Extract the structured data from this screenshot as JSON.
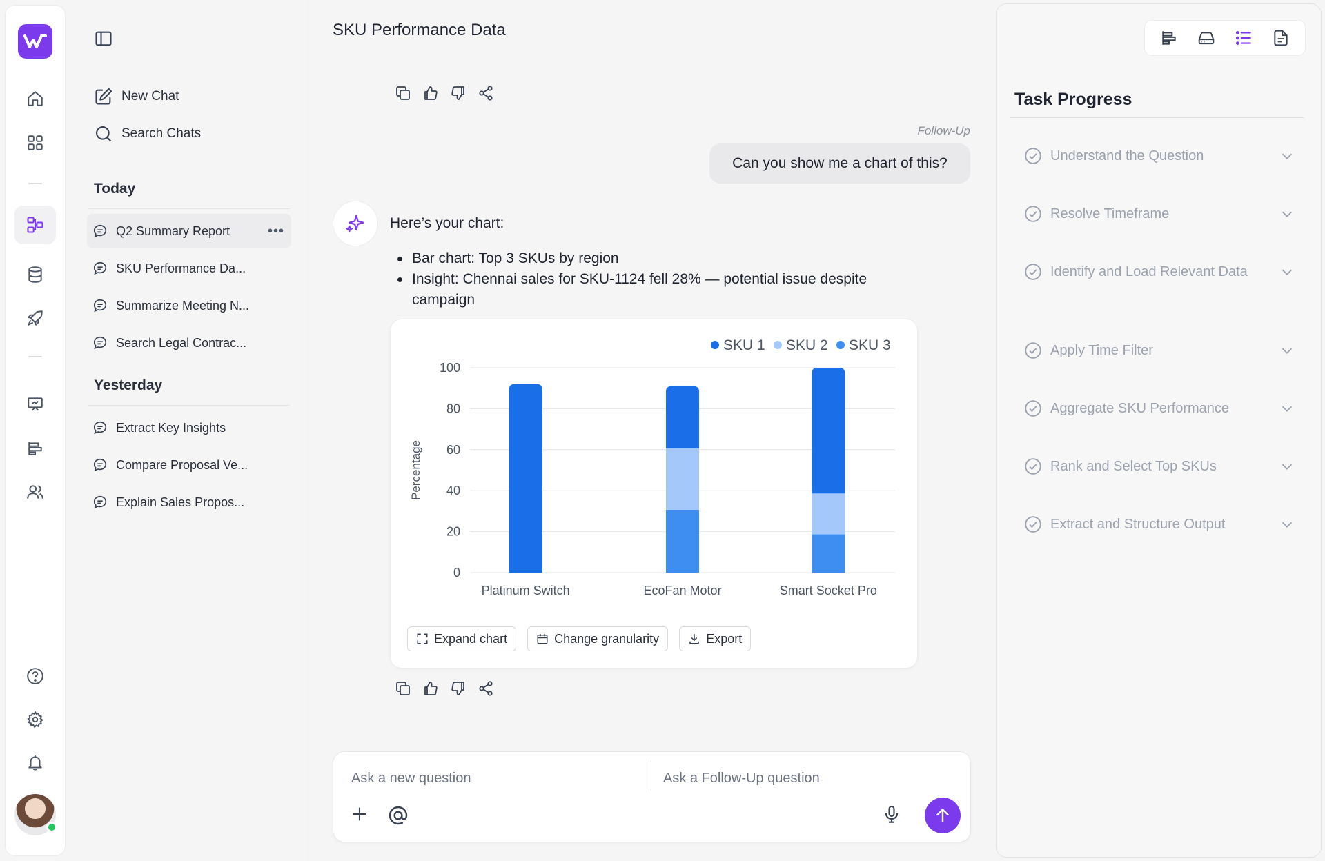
{
  "sidebar": {
    "new_chat": "New Chat",
    "search_chats": "Search Chats",
    "sections": [
      {
        "title": "Today",
        "chats": [
          "Q2 Summary Report",
          "SKU Performance Da...",
          "Summarize Meeting N...",
          "Search Legal Contrac..."
        ]
      },
      {
        "title": "Yesterday",
        "chats": [
          "Extract Key Insights",
          "Compare Proposal Ve...",
          "Explain Sales Propos..."
        ]
      }
    ],
    "more_label": "•••"
  },
  "main": {
    "title": "SKU Performance Data",
    "followup_tag": "Follow-Up",
    "user_message": "Can you show me a chart of this?",
    "ai_intro": "Here’s your chart:",
    "ai_bullets": [
      "Bar chart: Top 3 SKUs by region",
      "Insight: Chennai sales for SKU-1124 fell 28% — potential issue despite campaign"
    ],
    "chart_actions": {
      "expand": "Expand chart",
      "granularity": "Change granularity",
      "export": "Export"
    }
  },
  "chart_data": {
    "type": "bar",
    "stacked": true,
    "categories": [
      "Platinum Switch",
      "EcoFan Motor",
      "Smart Socket Pro"
    ],
    "series": [
      {
        "name": "SKU 1",
        "color": "#1a6fe8",
        "values": [
          92,
          27,
          58
        ]
      },
      {
        "name": "SKU 2",
        "color": "#a5c8fa",
        "values": [
          0,
          30,
          20
        ]
      },
      {
        "name": "SKU 3",
        "color": "#3d8ef0",
        "values": [
          0,
          34,
          22
        ]
      }
    ],
    "ylabel": "Percentage",
    "ylim": [
      0,
      100
    ],
    "yticks": [
      0,
      20,
      40,
      60,
      80,
      100
    ],
    "grid": true,
    "legend": "top-right"
  },
  "composer": {
    "new_placeholder": "Ask a new question",
    "followup_placeholder": "Ask a Follow-Up question"
  },
  "task_panel": {
    "title": "Task Progress",
    "tasks": [
      "Understand the Question",
      "Resolve Timeframe",
      "Identify and Load Relevant Data",
      "Apply Time Filter",
      "Aggregate SKU Performance",
      "Rank and Select Top SKUs",
      "Extract and Structure Output"
    ]
  },
  "colors": {
    "accent": "#7c3aed",
    "sku1": "#1a6fe8",
    "sku2": "#a5c8fa",
    "sku3": "#3d8ef0"
  }
}
